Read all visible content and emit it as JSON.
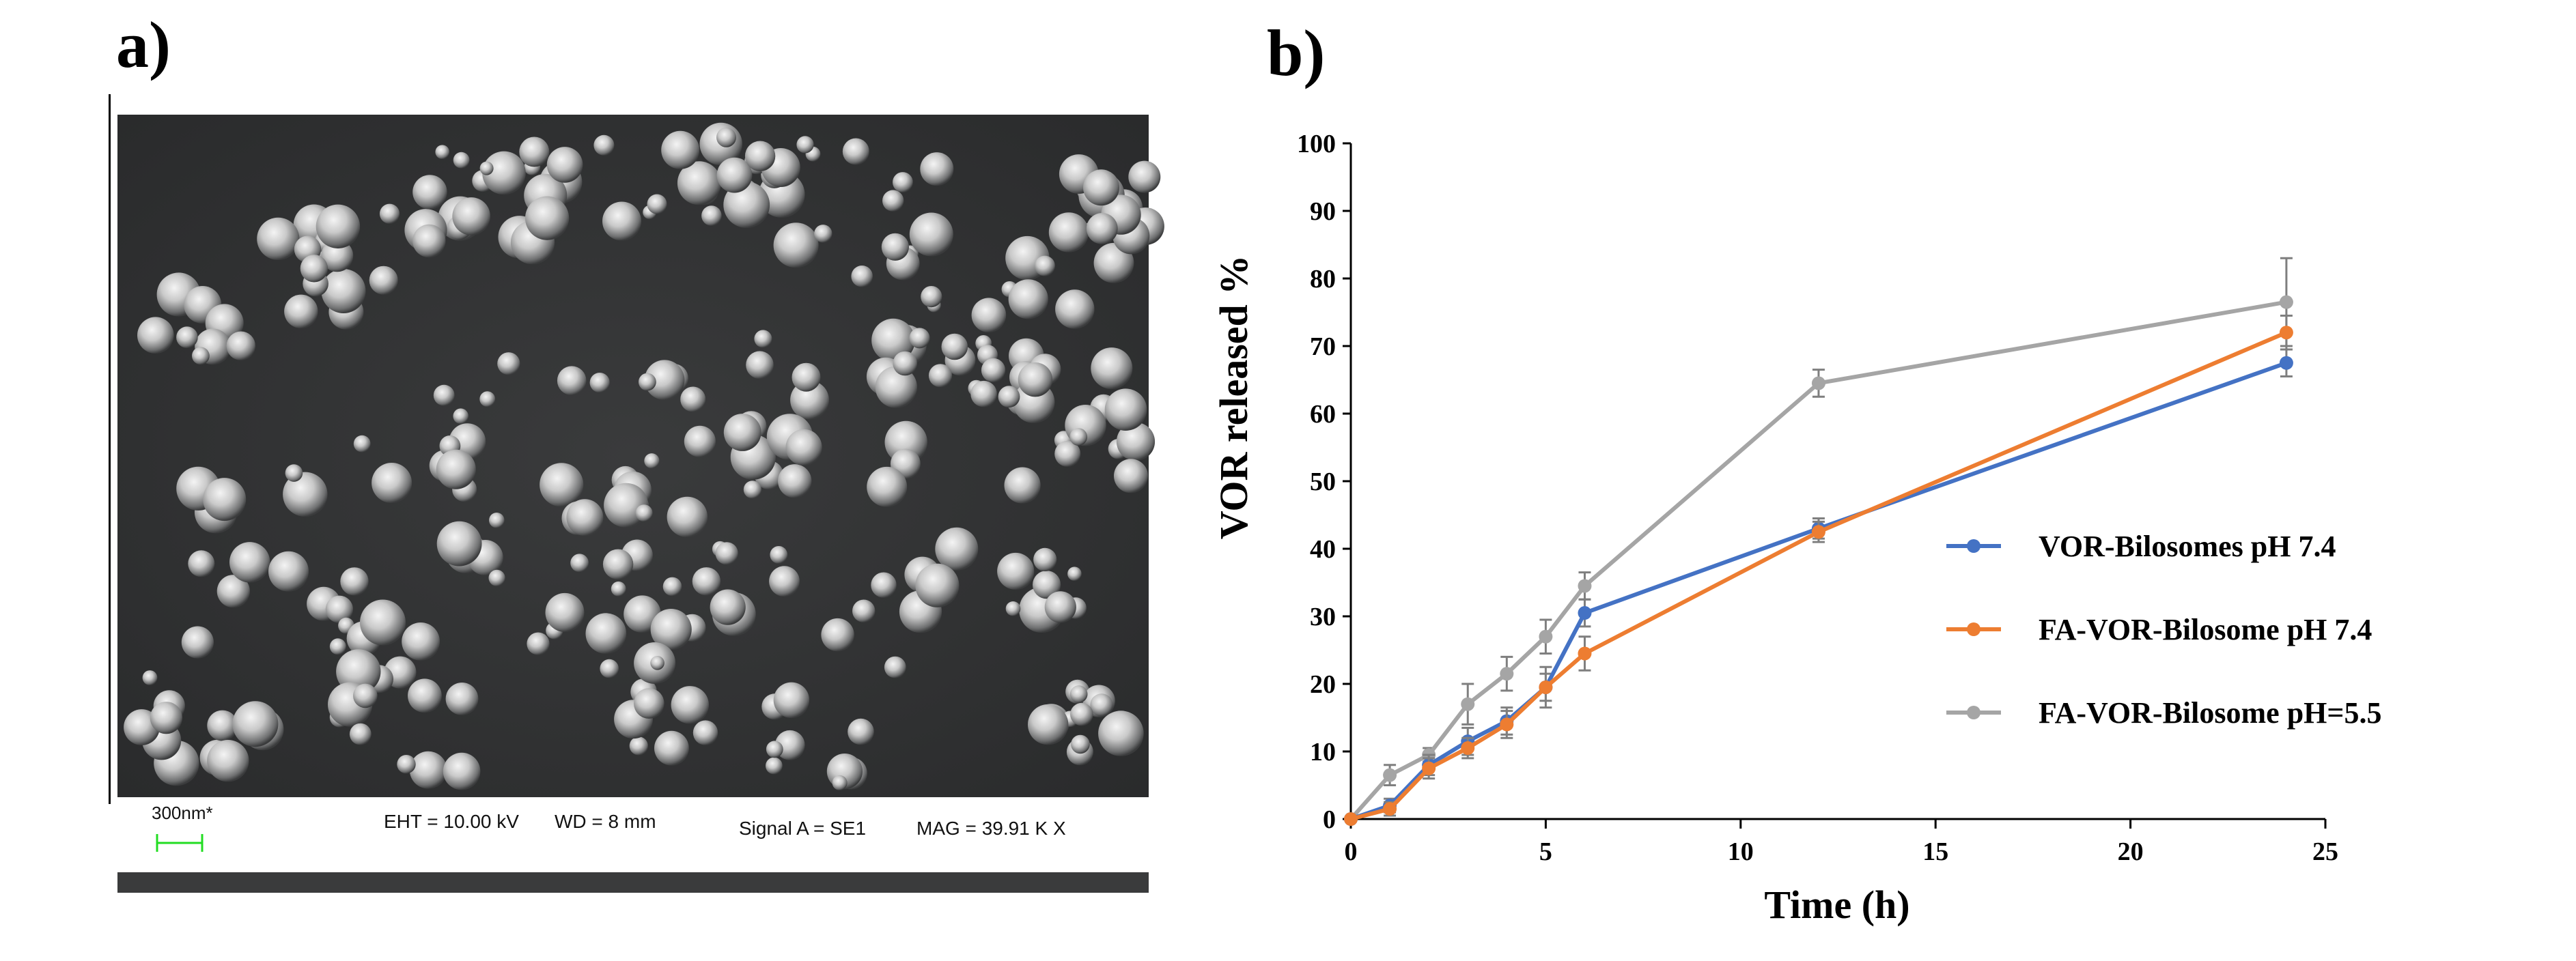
{
  "panels": {
    "a_label": "a)",
    "b_label": "b)"
  },
  "sem": {
    "scale_label": "300nm*",
    "eht": "EHT = 10.00 kV",
    "wd": "WD =    8 mm",
    "signal": "Signal A = SE1",
    "mag": "MAG =  39.91 K X",
    "scale_color": "#22dd22"
  },
  "chart_data": {
    "type": "line",
    "xlabel": "Time (h)",
    "ylabel": "VOR released %",
    "xlim": [
      0,
      25
    ],
    "ylim": [
      0,
      100
    ],
    "xticks": [
      0,
      5,
      10,
      15,
      20,
      25
    ],
    "yticks": [
      0,
      10,
      20,
      30,
      40,
      50,
      60,
      70,
      80,
      90,
      100
    ],
    "grid": false,
    "legend_position": "center-right",
    "series": [
      {
        "name": "VOR-Bilosomes pH 7.4",
        "color": "#4472c4",
        "x": [
          0,
          1,
          2,
          3,
          4,
          5,
          6,
          12,
          24
        ],
        "y": [
          0,
          2,
          8,
          11.5,
          14.5,
          19.5,
          30.5,
          43,
          67.5
        ],
        "err": [
          0,
          1,
          1.5,
          2,
          2,
          2,
          2,
          1.5,
          2
        ]
      },
      {
        "name": "FA-VOR-Bilosome pH 7.4",
        "color": "#ed7d31",
        "x": [
          0,
          1,
          2,
          3,
          4,
          5,
          6,
          12,
          24
        ],
        "y": [
          0,
          1.5,
          7.5,
          10.5,
          14,
          19.5,
          24.5,
          42.5,
          72
        ],
        "err": [
          0,
          1,
          1.5,
          1.5,
          2,
          3,
          2.5,
          1.5,
          2.5
        ]
      },
      {
        "name": "FA-VOR-Bilosome pH=5.5",
        "color": "#a5a5a5",
        "x": [
          0,
          1,
          2,
          3,
          4,
          5,
          6,
          12,
          24
        ],
        "y": [
          0,
          6.5,
          9.5,
          17,
          21.5,
          27,
          34.5,
          64.5,
          76.5
        ],
        "err": [
          0,
          1.5,
          1,
          3,
          2.5,
          2.5,
          2,
          2,
          6.5
        ]
      }
    ]
  }
}
